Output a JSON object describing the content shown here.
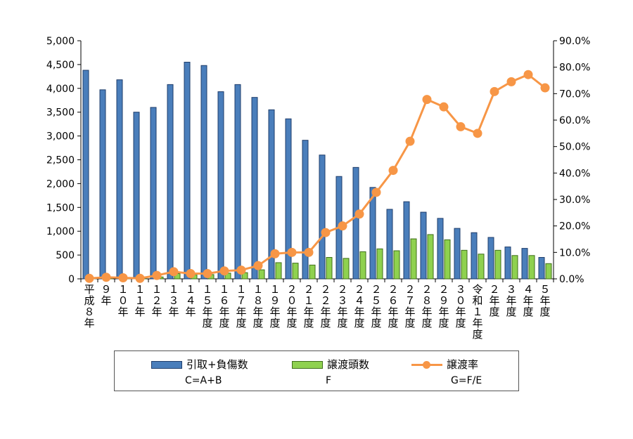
{
  "colors": {
    "series1": "#4a7ebb",
    "series1_edge": "#1f3d6b",
    "series2": "#8fd14f",
    "series2_edge": "#3f6e1a",
    "series3": "#f79646"
  },
  "chart_data": {
    "type": "bar",
    "categories": [
      "平成８年",
      "９年",
      "１０年",
      "１１年",
      "１２年",
      "１３年",
      "１４年",
      "１５年度",
      "１６年度",
      "１７年度",
      "１８年度",
      "１９年度",
      "２０年度",
      "２１年度",
      "２２年度",
      "２３年度",
      "２４年度",
      "２５年度",
      "２６年度",
      "２７年度",
      "２８年度",
      "２９年度",
      "３０年度",
      "令和１年度",
      "２年度",
      "３年度",
      "４年度",
      "５年度"
    ],
    "series": [
      {
        "name": "引取+負傷数",
        "axis": "left",
        "type": "bar",
        "values": [
          4380,
          3970,
          4180,
          3500,
          3600,
          4080,
          4550,
          4480,
          3930,
          4080,
          3810,
          3550,
          3360,
          2910,
          2600,
          2150,
          2340,
          1920,
          1460,
          1620,
          1400,
          1270,
          1060,
          970,
          870,
          670,
          640,
          450
        ]
      },
      {
        "name": "譲渡頭数",
        "axis": "left",
        "type": "bar",
        "values": [
          10,
          20,
          15,
          10,
          40,
          110,
          90,
          90,
          120,
          130,
          190,
          340,
          330,
          290,
          450,
          430,
          570,
          630,
          590,
          840,
          930,
          820,
          600,
          520,
          600,
          490,
          490,
          320
        ]
      },
      {
        "name": "譲渡率",
        "axis": "right",
        "type": "line",
        "values": [
          0.2,
          0.6,
          0.4,
          0.2,
          1.3,
          2.7,
          2.0,
          2.0,
          3.0,
          3.3,
          5.0,
          9.5,
          10.0,
          10.0,
          17.5,
          20.0,
          24.5,
          32.7,
          41.0,
          52.0,
          67.8,
          65.0,
          57.5,
          55.0,
          70.8,
          74.5,
          77.2,
          72.2
        ]
      }
    ],
    "y_left": {
      "min": 0,
      "max": 5000,
      "ticks": [
        "0",
        "500",
        "1,000",
        "1,500",
        "2,000",
        "2,500",
        "3,000",
        "3,500",
        "4,000",
        "4,500",
        "5,000"
      ]
    },
    "y_right": {
      "min": 0,
      "max": 90,
      "ticks": [
        "0.0%",
        "10.0%",
        "20.0%",
        "30.0%",
        "40.0%",
        "50.0%",
        "60.0%",
        "70.0%",
        "80.0%",
        "90.0%"
      ]
    },
    "grid": false,
    "legend_position": "bottom"
  },
  "legend": {
    "items": [
      {
        "label": "引取+負傷数",
        "sub": "C=A+B"
      },
      {
        "label": "譲渡頭数",
        "sub": "F"
      },
      {
        "label": "譲渡率",
        "sub": "G=F/E"
      }
    ]
  }
}
